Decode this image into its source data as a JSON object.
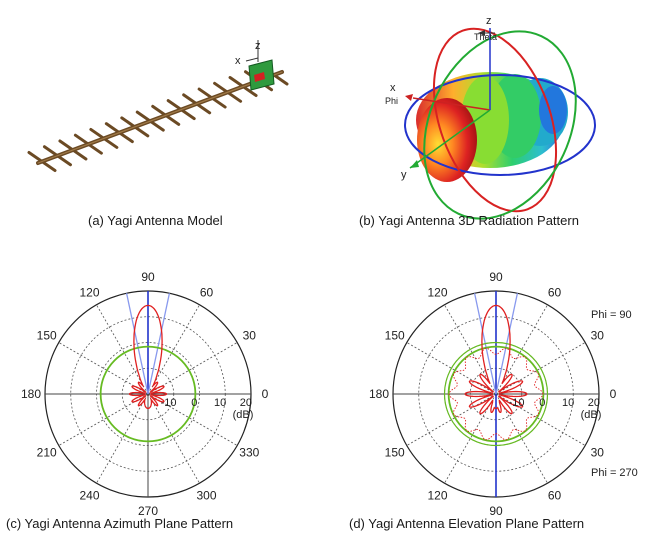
{
  "captions": {
    "a": "(a) Yagi Antenna Model",
    "b": "(b) Yagi Antenna 3D Radiation Pattern",
    "c": "(c) Yagi Antenna Azimuth Plane Pattern",
    "d": "(d) Yagi Antenna Elevation Plane Pattern"
  },
  "model_axes": {
    "x": "x",
    "z": "z"
  },
  "pattern3d_axes": {
    "z": "z",
    "theta": "Theta",
    "x": "x",
    "phi": "Phi",
    "y": "y"
  },
  "azimuth": {
    "angle_labels": [
      "0",
      "30",
      "60",
      "90",
      "120",
      "150",
      "180",
      "210",
      "240",
      "270",
      "300",
      "330"
    ],
    "radial_labels": [
      "-10",
      "0",
      "10",
      "20"
    ],
    "unit": "(dB)"
  },
  "elevation": {
    "angle_labels": [
      "0",
      "30",
      "60",
      "90",
      "120",
      "150",
      "180",
      "150",
      "120",
      "90",
      "60",
      "30"
    ],
    "radial_labels": [
      "-10",
      "0",
      "10",
      "20"
    ],
    "unit": "(dB)",
    "phi_top": "Phi = 90",
    "phi_bottom": "Phi = 270"
  },
  "colors": {
    "pattern": "#e02020",
    "gain_circle": "#66bb22",
    "main_axis": "#2233cc",
    "beam_lines": "#8899ee",
    "grid": "#555555",
    "boom": "#6b4a24"
  }
}
